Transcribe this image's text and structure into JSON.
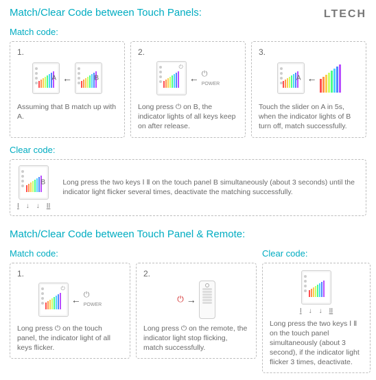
{
  "brand": "LTECH",
  "colors": {
    "cyan": "#00acc1",
    "text": "#6a6a6a",
    "border_dash": "#bdbdbd",
    "red": "#d32f2f"
  },
  "bar_colors": [
    "#ff4d4d",
    "#ff944d",
    "#ffcc4d",
    "#ccff66",
    "#4dff88",
    "#4dd2ff",
    "#4d88ff",
    "#b84dff"
  ],
  "section1": {
    "title": "Match/Clear Code between Touch Panels:",
    "match_label": "Match code:",
    "steps": [
      {
        "n": "1.",
        "labelA": "A",
        "labelB": "B",
        "caption": "Assuming that B match up with A."
      },
      {
        "n": "2.",
        "caption": "Long press ⏻ on B, the indicator lights of all keys keep on after release."
      },
      {
        "n": "3.",
        "labelA": "A",
        "caption": "Touch the slider on A in 5s, when the indicator lights of B turn off, match successfully."
      }
    ],
    "clear_label": "Clear code:",
    "clear": {
      "labelB": "B",
      "foot_I": "I",
      "foot_II": "II",
      "caption": "Long press the two keys Ⅰ Ⅱ on the touch panel B simultaneously (about 3 seconds) until the indicator light flicker several times, deactivate the matching successfully."
    }
  },
  "section2": {
    "title": "Match/Clear Code between Touch Panel & Remote:",
    "match_label": "Match code:",
    "clear_label": "Clear code:",
    "steps": [
      {
        "n": "1.",
        "caption": "Long press ⏻ on the touch panel, the indicator light of all keys flicker."
      },
      {
        "n": "2.",
        "caption": "Long press ⏻ on the remote, the indicator light stop flicking, match successfully."
      }
    ],
    "clear": {
      "foot_I": "I",
      "foot_II": "II",
      "caption": "Long press the two keys Ⅰ Ⅱ on the touch panel simultaneously (about 3 second), if the indicator light flicker 3 times, deactivate."
    }
  }
}
